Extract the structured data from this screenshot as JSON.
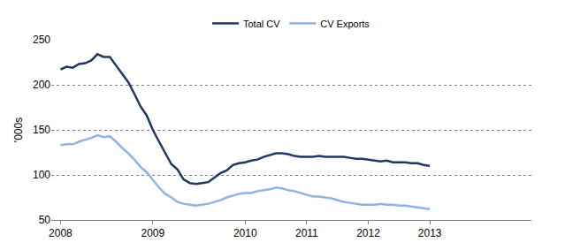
{
  "chart_data": {
    "type": "line",
    "y_label": "'000s",
    "categories": [
      "2008",
      null,
      null,
      null,
      null,
      null,
      null,
      null,
      null,
      null,
      null,
      null,
      null,
      null,
      null,
      "2009",
      null,
      null,
      null,
      null,
      null,
      null,
      null,
      null,
      null,
      null,
      null,
      null,
      null,
      null,
      "2010",
      null,
      null,
      null,
      null,
      null,
      null,
      null,
      null,
      null,
      "2011",
      null,
      null,
      null,
      null,
      null,
      null,
      null,
      null,
      null,
      "2012",
      null,
      null,
      null,
      null,
      null,
      null,
      null,
      null,
      null,
      "2013",
      null,
      null,
      null,
      null,
      null,
      null,
      null,
      null,
      null,
      null,
      null,
      null,
      null,
      null,
      null,
      null
    ],
    "series": [
      {
        "name": "Total CV",
        "color": "#1f3864",
        "values": [
          217,
          220,
          219,
          223,
          224,
          227,
          234,
          231,
          231,
          222,
          212,
          203,
          190,
          176,
          166,
          150,
          137,
          124,
          112,
          106,
          95,
          91,
          90,
          91,
          92,
          97,
          102,
          105,
          111,
          113,
          114,
          116,
          117,
          120,
          122,
          124,
          124,
          123,
          121,
          120,
          120,
          120,
          121,
          120,
          120,
          120,
          120,
          119,
          118,
          118,
          117,
          116,
          115,
          116,
          114,
          114,
          114,
          113,
          113,
          111,
          110,
          null,
          null,
          null,
          null,
          null,
          null,
          null,
          null,
          null,
          null,
          null,
          null,
          null,
          null,
          null,
          null
        ]
      },
      {
        "name": "CV Exports",
        "color": "#8db4e2",
        "values": [
          133,
          134,
          134,
          137,
          139,
          141,
          144,
          142,
          143,
          137,
          130,
          124,
          117,
          109,
          103,
          94,
          86,
          79,
          75,
          70,
          68,
          67,
          66,
          67,
          68,
          70,
          72,
          75,
          77,
          79,
          80,
          80,
          82,
          83,
          84,
          86,
          85,
          83,
          82,
          80,
          78,
          76,
          76,
          75,
          74,
          72,
          70,
          69,
          68,
          67,
          67,
          67,
          68,
          67,
          67,
          66,
          66,
          65,
          64,
          63,
          62,
          null,
          null,
          null,
          null,
          null,
          null,
          null,
          null,
          null,
          null,
          null,
          null,
          null,
          null,
          null,
          null
        ]
      }
    ],
    "ylim": [
      50,
      250
    ],
    "yticks": [
      50,
      100,
      150,
      200,
      250
    ],
    "grid": true,
    "legend": "top"
  }
}
